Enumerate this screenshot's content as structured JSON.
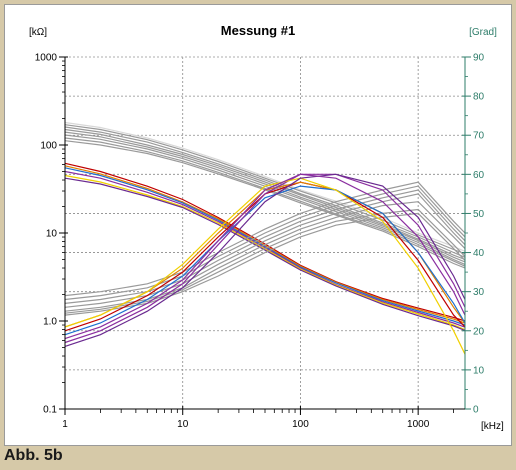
{
  "figure": {
    "caption": "Abb. 5b",
    "colors": {
      "background": "#ffffff",
      "frame": "#d6c9a8",
      "axis_left": "#000000",
      "axis_right": "#2e7d6a",
      "grid": "#8a8a8a"
    }
  },
  "chart_data": {
    "type": "line",
    "title": "Messung #1",
    "left_axis_label": "[kΩ]",
    "right_axis_label": "[Grad]",
    "x_unit_label": "[kHz]",
    "x_scale": "log",
    "xlim": [
      1,
      2500
    ],
    "x_ticks": [
      1,
      10,
      100,
      1000
    ],
    "x_tick_labels": [
      "1",
      "10",
      "100",
      "1000"
    ],
    "y_left_scale": "log",
    "y_left_lim": [
      0.1,
      1000
    ],
    "y_left_ticks": [
      0.1,
      1,
      10,
      100,
      1000
    ],
    "y_left_tick_labels": [
      "0.1",
      "1.0",
      "10",
      "100",
      "1000"
    ],
    "y_right_lim": [
      0,
      90
    ],
    "y_right_ticks": [
      0,
      10,
      20,
      30,
      40,
      50,
      60,
      70,
      80,
      90
    ],
    "y_right_tick_labels": [
      "0",
      "10",
      "20",
      "30",
      "40",
      "50",
      "60",
      "70",
      "80",
      "90"
    ],
    "grid": true,
    "legend": "none",
    "x": [
      1,
      2,
      5,
      10,
      20,
      50,
      100,
      200,
      500,
      1000,
      2000,
      2500
    ],
    "series": [
      {
        "axis": "left",
        "color": "#9a9a9a",
        "values": [
          170,
          150,
          115,
          88,
          65,
          42,
          30,
          22,
          14,
          9.5,
          6.5,
          5.8
        ]
      },
      {
        "axis": "left",
        "color": "#9a9a9a",
        "values": [
          160,
          140,
          108,
          82,
          61,
          40,
          28,
          20.5,
          13,
          9,
          6,
          5.3
        ]
      },
      {
        "axis": "left",
        "color": "#9a9a9a",
        "values": [
          150,
          132,
          100,
          78,
          58,
          38,
          27,
          19.5,
          12.5,
          8.5,
          5.6,
          5
        ]
      },
      {
        "axis": "left",
        "color": "#9a9a9a",
        "values": [
          140,
          124,
          95,
          74,
          55,
          36,
          25.5,
          18.5,
          12,
          8.2,
          5.3,
          4.7
        ]
      },
      {
        "axis": "left",
        "color": "#9a9a9a",
        "values": [
          130,
          116,
          90,
          70,
          52,
          34,
          24.5,
          17.5,
          11.5,
          7.8,
          5,
          4.4
        ]
      },
      {
        "axis": "left",
        "color": "#9a9a9a",
        "values": [
          120,
          108,
          84,
          66,
          49,
          32,
          23,
          16.5,
          11,
          7.4,
          4.8,
          4.2
        ]
      },
      {
        "axis": "left",
        "color": "#9a9a9a",
        "values": [
          112,
          100,
          80,
          63,
          47,
          31,
          22,
          16,
          10.5,
          7,
          4.5,
          4
        ]
      },
      {
        "axis": "left",
        "color": "#d8d8d8",
        "values": [
          180,
          158,
          120,
          92,
          68,
          44,
          31,
          23,
          15,
          10,
          7,
          6.2
        ]
      },
      {
        "axis": "left",
        "color": "#c00000",
        "values": [
          62,
          50,
          34,
          24,
          15,
          7.5,
          4.3,
          2.8,
          1.8,
          1.4,
          1.1,
          1
        ]
      },
      {
        "axis": "left",
        "color": "#e08000",
        "values": [
          58,
          47,
          32,
          22.5,
          14.5,
          7.2,
          4.2,
          2.75,
          1.75,
          1.35,
          1.05,
          0.95
        ]
      },
      {
        "axis": "left",
        "color": "#1f6fd0",
        "values": [
          55,
          45,
          31,
          22,
          14,
          7,
          4.1,
          2.7,
          1.7,
          1.3,
          1.0,
          0.9
        ]
      },
      {
        "axis": "left",
        "color": "#8b2fa0",
        "values": [
          50,
          42,
          29,
          21,
          13.5,
          6.8,
          4,
          2.6,
          1.65,
          1.25,
          0.95,
          0.85
        ]
      },
      {
        "axis": "left",
        "color": "#f0d000",
        "values": [
          45,
          38,
          27,
          20,
          13,
          6.6,
          3.9,
          2.55,
          1.6,
          1.2,
          0.9,
          0.8
        ]
      },
      {
        "axis": "left",
        "color": "#6a2a90",
        "values": [
          42,
          36,
          26,
          19.5,
          12.5,
          6.4,
          3.8,
          2.5,
          1.55,
          1.15,
          0.88,
          0.78
        ]
      },
      {
        "axis": "right",
        "color": "#9a9a9a",
        "values": [
          29,
          30,
          32,
          35,
          40,
          46,
          50,
          53,
          56,
          58,
          48,
          45
        ]
      },
      {
        "axis": "right",
        "color": "#9a9a9a",
        "values": [
          28,
          29,
          31,
          34,
          39,
          45,
          49,
          52,
          55,
          57,
          47,
          44
        ]
      },
      {
        "axis": "right",
        "color": "#9a9a9a",
        "values": [
          27,
          28,
          30,
          33,
          38,
          44,
          48,
          51,
          54,
          56,
          46,
          43
        ]
      },
      {
        "axis": "right",
        "color": "#9a9a9a",
        "values": [
          26,
          27,
          29,
          32,
          37,
          43,
          47,
          50,
          53,
          55,
          45,
          42
        ]
      },
      {
        "axis": "right",
        "color": "#9a9a9a",
        "values": [
          25,
          26,
          28,
          31,
          36,
          42,
          46,
          49,
          52,
          53,
          44,
          41
        ]
      },
      {
        "axis": "right",
        "color": "#9a9a9a",
        "values": [
          24.5,
          25.5,
          27.5,
          30.5,
          35,
          41,
          45,
          48,
          50,
          51,
          42,
          39
        ]
      },
      {
        "axis": "right",
        "color": "#9a9a9a",
        "values": [
          24,
          25,
          27,
          30,
          34,
          40,
          44,
          47,
          49,
          50,
          41,
          38
        ]
      },
      {
        "axis": "right",
        "color": "#c00000",
        "values": [
          20,
          23,
          29,
          35,
          44,
          55,
          58,
          56,
          49,
          38,
          24,
          21
        ]
      },
      {
        "axis": "right",
        "color": "#e08000",
        "values": [
          21,
          24,
          30,
          36,
          45,
          56,
          58,
          56,
          50,
          40,
          26,
          22
        ]
      },
      {
        "axis": "right",
        "color": "#1f6fd0",
        "values": [
          19,
          22,
          28,
          34,
          43,
          54,
          57,
          56,
          50,
          40,
          27,
          22
        ]
      },
      {
        "axis": "right",
        "color": "#8b2fa0",
        "values": [
          17,
          20,
          26,
          32,
          42,
          55,
          60,
          60,
          56,
          47,
          32,
          26
        ]
      },
      {
        "axis": "right",
        "color": "#f0d000",
        "values": [
          21,
          24,
          30,
          37,
          46,
          57,
          59,
          56,
          48,
          36,
          20,
          14
        ]
      },
      {
        "axis": "right",
        "color": "#6a2a90",
        "values": [
          16,
          19,
          25,
          31,
          40,
          53,
          59,
          60,
          57,
          49,
          34,
          28
        ]
      },
      {
        "axis": "right",
        "color": "#8b2fa0",
        "values": [
          18,
          21,
          27,
          33,
          43,
          56,
          60,
          59,
          53,
          44,
          30,
          24
        ]
      }
    ]
  }
}
